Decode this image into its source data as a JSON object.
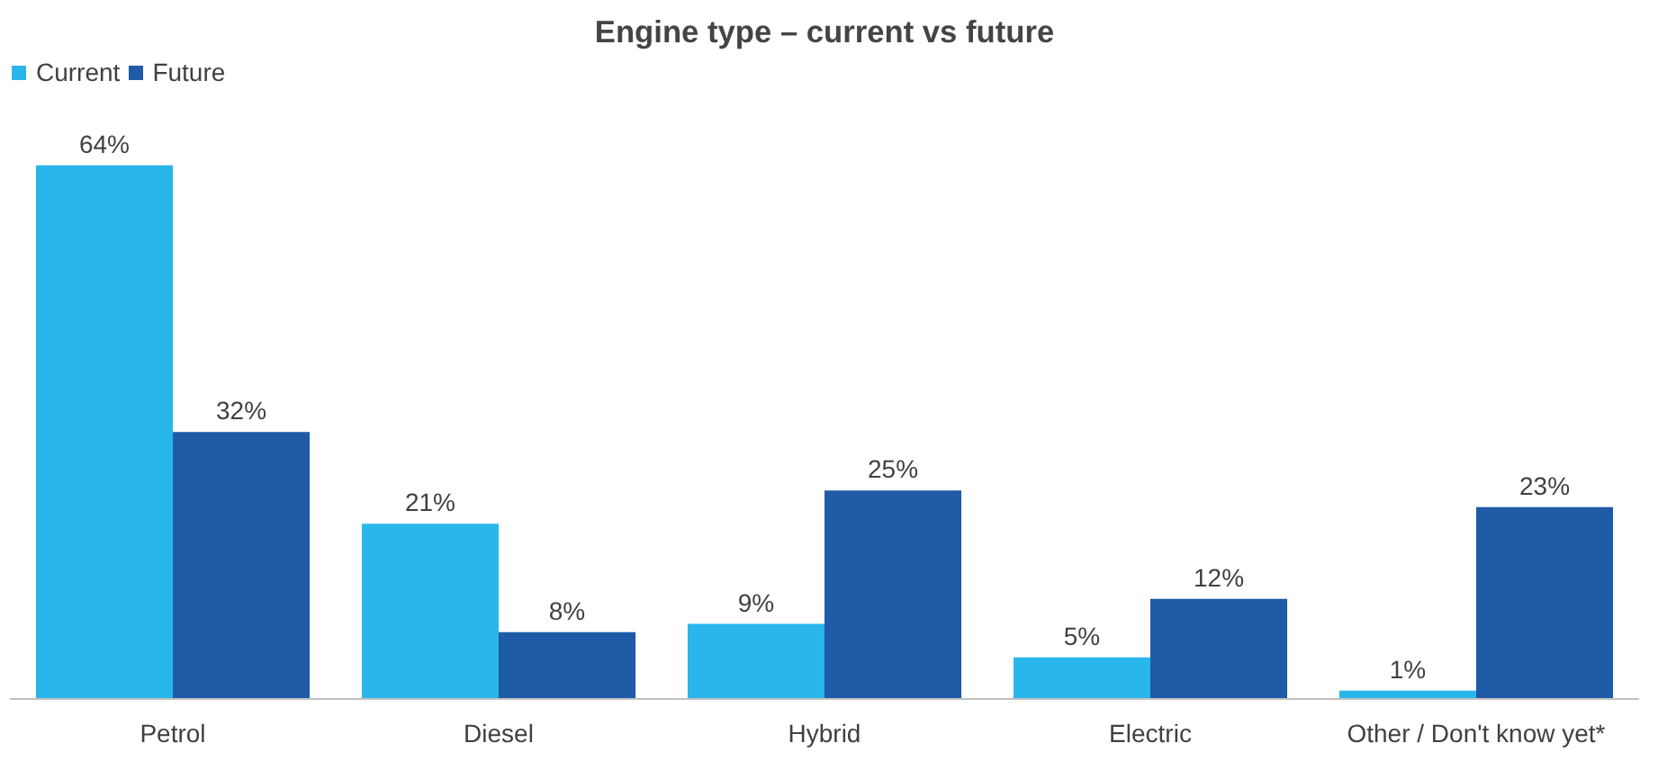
{
  "chart_data": {
    "type": "bar",
    "title": "Engine type – current vs future",
    "categories": [
      "Petrol",
      "Diesel",
      "Hybrid",
      "Electric",
      "Other / Don't know yet*"
    ],
    "series": [
      {
        "name": "Current",
        "color": "#29b6ea",
        "values": [
          64,
          21,
          9,
          5,
          1
        ],
        "value_labels": [
          "64%",
          "21%",
          "9%",
          "5%",
          "1%"
        ]
      },
      {
        "name": "Future",
        "color": "#1f5ba6",
        "values": [
          32,
          8,
          25,
          12,
          23
        ],
        "value_labels": [
          "32%",
          "8%",
          "25%",
          "12%",
          "23%"
        ]
      }
    ],
    "legend": "top left",
    "grid": false
  }
}
